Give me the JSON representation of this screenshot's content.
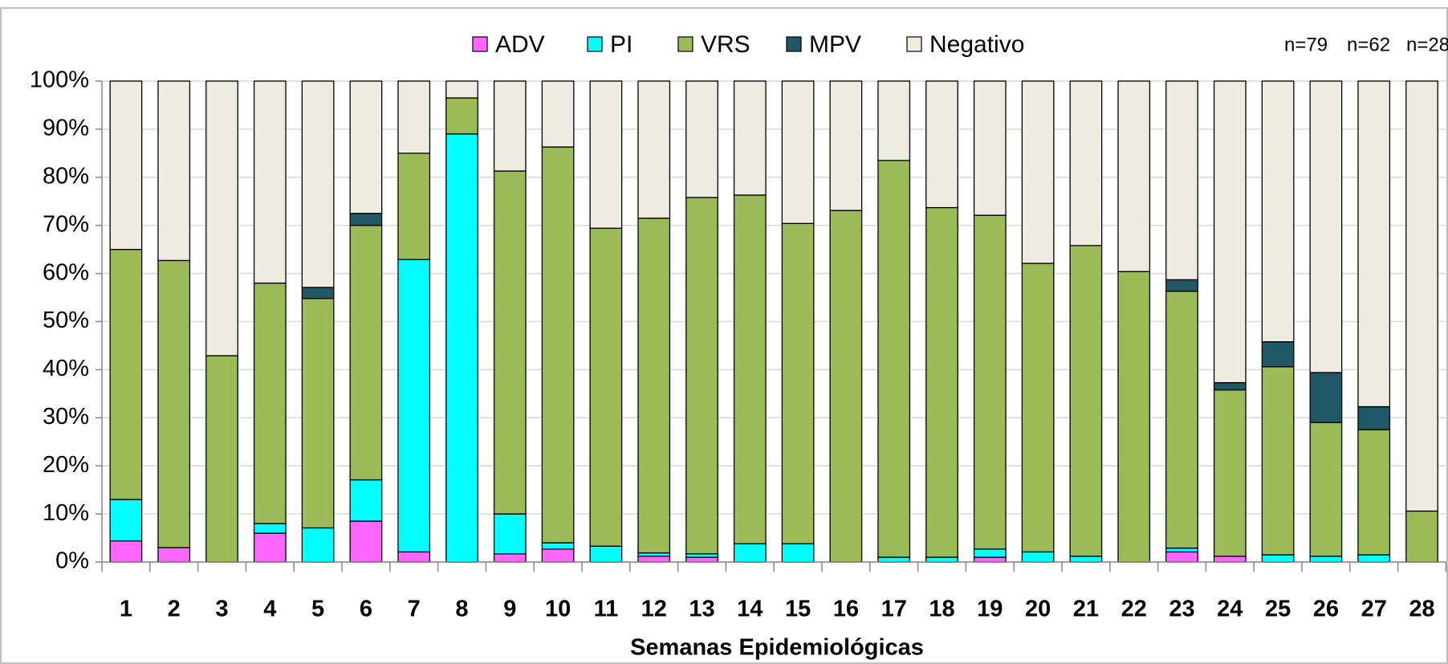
{
  "chart_data": {
    "type": "stacked_bar",
    "x_label": "Semanas Epidemiológicas",
    "annotations": [
      "n=79",
      "n=62",
      "n=28"
    ],
    "categories": [
      "1",
      "2",
      "3",
      "4",
      "5",
      "6",
      "7",
      "8",
      "9",
      "10",
      "11",
      "12",
      "13",
      "14",
      "15",
      "16",
      "17",
      "18",
      "19",
      "20",
      "21",
      "22",
      "23",
      "24",
      "25",
      "26",
      "27",
      "28"
    ],
    "series": [
      {
        "name": "ADV",
        "color": "#ff66ff",
        "values": [
          4.4,
          3,
          0,
          6,
          0,
          8.5,
          2.1,
          0,
          1.7,
          2.7,
          0,
          1.2,
          1,
          0,
          0,
          0,
          0,
          0,
          1,
          0,
          0,
          0,
          2.1,
          1.2,
          0,
          0,
          0,
          0
        ]
      },
      {
        "name": "PI",
        "color": "#00ffff",
        "values": [
          8.6,
          0,
          0,
          2,
          7.1,
          8.6,
          60.8,
          89,
          8.3,
          1.3,
          3.3,
          0.7,
          0.7,
          3.8,
          3.8,
          0,
          1,
          1,
          1.7,
          2.1,
          1.2,
          0,
          0.8,
          0,
          1.5,
          1.2,
          1.5,
          0
        ]
      },
      {
        "name": "VRS",
        "color": "#9bbb59",
        "values": [
          52,
          59.7,
          42.9,
          50,
          47.7,
          52.9,
          22.1,
          7.5,
          71.3,
          82.3,
          66.1,
          69.6,
          74.1,
          72.5,
          66.6,
          73.1,
          82.5,
          72.7,
          69.4,
          60,
          64.6,
          60.4,
          53.4,
          34.6,
          39.1,
          27.8,
          26,
          10.6
        ]
      },
      {
        "name": "MPV",
        "color": "#215868",
        "values": [
          0,
          0,
          0,
          0,
          2.3,
          2.5,
          0,
          0,
          0,
          0,
          0,
          0,
          0,
          0,
          0,
          0,
          0,
          0,
          0,
          0,
          0,
          0,
          2.4,
          1.5,
          5.2,
          10.4,
          4.8,
          0
        ]
      },
      {
        "name": "Negativo",
        "color": "#eeece1",
        "values": [
          35,
          37.3,
          57.1,
          42,
          42.9,
          27.5,
          15,
          3.5,
          18.7,
          13.7,
          30.6,
          28.5,
          24.2,
          23.7,
          29.6,
          26.9,
          16.5,
          26.3,
          27.9,
          37.9,
          34.2,
          39.6,
          41.3,
          62.7,
          54.2,
          60.6,
          67.7,
          89.4
        ]
      }
    ],
    "ylim": [
      0,
      100
    ],
    "yticks": [
      {
        "value": 0,
        "label": "0%"
      },
      {
        "value": 10,
        "label": "10%"
      },
      {
        "value": 20,
        "label": "20%"
      },
      {
        "value": 30,
        "label": "30%"
      },
      {
        "value": 40,
        "label": "40%"
      },
      {
        "value": 50,
        "label": "50%"
      },
      {
        "value": 60,
        "label": "60%"
      },
      {
        "value": 70,
        "label": "70%"
      },
      {
        "value": 80,
        "label": "80%"
      },
      {
        "value": 90,
        "label": "90%"
      },
      {
        "value": 100,
        "label": "100%"
      }
    ],
    "grid": true,
    "legend": "top"
  }
}
